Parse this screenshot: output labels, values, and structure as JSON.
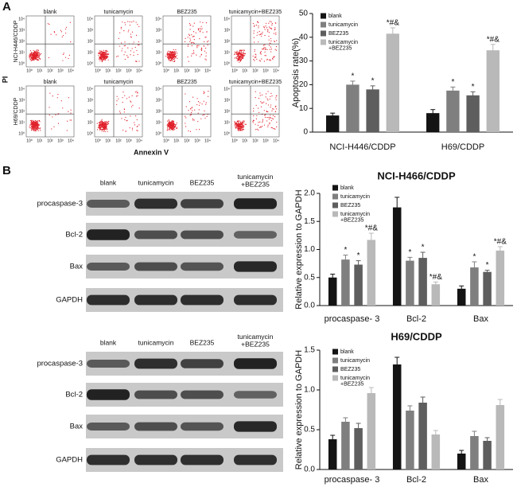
{
  "panel_labels": [
    "A",
    "B"
  ],
  "flow": {
    "row_labels": [
      "NCI-H446/CDDP",
      "H69/CDDP"
    ],
    "column_titles": [
      "blank",
      "tunicamycin",
      "BEZ235",
      "tunicamycin+BEZ235"
    ],
    "x_label": "Annexin V",
    "y_label": "PI",
    "axis_ticks": [
      "10⁰",
      "10¹",
      "10²",
      "10³",
      "10⁴"
    ]
  },
  "blots": [
    {
      "columns": [
        "blank",
        "tunicamycin",
        "BEZ235",
        "tunicamycin\n+BEZ235"
      ],
      "rows": [
        "procaspase-3",
        "Bcl-2",
        "Bax",
        "GAPDH"
      ]
    },
    {
      "columns": [
        "blank",
        "tunicamycin",
        "BEZ235",
        "tunicamycin\n+BEZ235"
      ],
      "rows": [
        "procaspase-3",
        "Bcl-2",
        "Bax",
        "GAPDH"
      ]
    }
  ],
  "chart_data": [
    {
      "type": "bar",
      "y_label": "Apoptosis  rate(%)",
      "categories": [
        "NCI-H446/CDDP",
        "H69/CDDP"
      ],
      "ylim": [
        0,
        50
      ],
      "yticks": [
        0,
        10,
        20,
        30,
        40,
        50
      ],
      "legend_position": "upper left",
      "series": [
        {
          "name": "blank",
          "color": "#141414",
          "values": [
            7,
            8
          ],
          "errors": [
            1,
            1.5
          ],
          "annotations": [
            null,
            null
          ]
        },
        {
          "name": "tunicamycin",
          "color": "#7f7f7f",
          "values": [
            20,
            17.5
          ],
          "errors": [
            1.5,
            1.5
          ],
          "annotations": [
            "*",
            "*"
          ]
        },
        {
          "name": "BEZ235",
          "color": "#5e5e5e",
          "values": [
            18,
            15.5
          ],
          "errors": [
            1.5,
            1.5
          ],
          "annotations": [
            "*",
            "*"
          ]
        },
        {
          "name": "tunicamycin\n+BEZ235",
          "color": "#b9b9b9",
          "values": [
            41.5,
            34.5
          ],
          "errors": [
            2.5,
            2.5
          ],
          "annotations": [
            "*#&",
            "*#&"
          ]
        }
      ]
    },
    {
      "type": "bar",
      "title": "NCI-H466/CDDP",
      "y_label": "Relative expression  to GAPDH",
      "categories": [
        "procaspase- 3",
        "Bcl-2",
        "Bax"
      ],
      "ylim": [
        0,
        2
      ],
      "yticks": [
        {
          "value": 0,
          "label": "0.0"
        },
        0.5,
        {
          "value": 1,
          "label": "1.0"
        },
        1.5,
        {
          "value": 2,
          "label": "2.0"
        }
      ],
      "legend_position": "upper left",
      "series": [
        {
          "name": "blank",
          "color": "#141414",
          "values": [
            0.5,
            1.75,
            0.3
          ],
          "errors": [
            0.06,
            0.18,
            0.05
          ],
          "annotations": [
            null,
            null,
            null
          ]
        },
        {
          "name": "tunicamycin",
          "color": "#7f7f7f",
          "values": [
            0.82,
            0.8,
            0.68
          ],
          "errors": [
            0.08,
            0.06,
            0.1
          ],
          "annotations": [
            "*",
            "*",
            "*"
          ]
        },
        {
          "name": "BEZ235",
          "color": "#5e5e5e",
          "values": [
            0.73,
            0.85,
            0.6
          ],
          "errors": [
            0.07,
            0.1,
            0.03
          ],
          "annotations": [
            "*",
            "*",
            "*"
          ]
        },
        {
          "name": "tunicamycin\n+BEZ235",
          "color": "#b9b9b9",
          "values": [
            1.17,
            0.38,
            0.98
          ],
          "errors": [
            0.12,
            0.04,
            0.07
          ],
          "annotations": [
            "*#&",
            "*#&",
            "*#&"
          ]
        }
      ]
    },
    {
      "type": "bar",
      "title": "H69/CDDP",
      "y_label": "Relative expression  to GAPDH",
      "categories": [
        "procaspase- 3",
        "Bcl-2",
        "Bax"
      ],
      "ylim": [
        0,
        1.5
      ],
      "yticks": [
        {
          "value": 0,
          "label": "0.0"
        },
        0.5,
        {
          "value": 1,
          "label": "1.0"
        },
        1.5
      ],
      "legend_position": "upper left",
      "series": [
        {
          "name": "blank",
          "color": "#141414",
          "values": [
            0.38,
            1.32,
            0.2
          ],
          "errors": [
            0.05,
            0.09,
            0.04
          ]
        },
        {
          "name": "tunicamycin",
          "color": "#7f7f7f",
          "values": [
            0.6,
            0.74,
            0.42
          ],
          "errors": [
            0.05,
            0.06,
            0.06
          ]
        },
        {
          "name": "BEZ235",
          "color": "#5e5e5e",
          "values": [
            0.52,
            0.84,
            0.36
          ],
          "errors": [
            0.06,
            0.07,
            0.04
          ]
        },
        {
          "name": "tunicamycin\n+BEZ235",
          "color": "#b9b9b9",
          "values": [
            0.96,
            0.44,
            0.81
          ],
          "errors": [
            0.07,
            0.05,
            0.07
          ]
        }
      ]
    }
  ]
}
